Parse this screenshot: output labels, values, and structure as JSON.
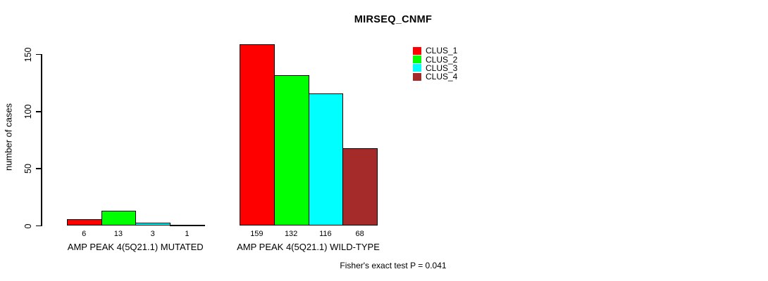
{
  "chart_data": {
    "type": "bar",
    "title": "MIRSEQ_CNMF",
    "ylabel": "number of cases",
    "ylim": [
      0,
      150
    ],
    "yticks": [
      0,
      50,
      100,
      150
    ],
    "series": [
      {
        "name": "CLUS_1",
        "color": "#ff0000"
      },
      {
        "name": "CLUS_2",
        "color": "#00ff00"
      },
      {
        "name": "CLUS_3",
        "color": "#00ffff"
      },
      {
        "name": "CLUS_4",
        "color": "#a52a2a"
      }
    ],
    "groups": [
      {
        "label": "AMP PEAK 4(5Q21.1) MUTATED",
        "values": [
          6,
          13,
          3,
          1
        ]
      },
      {
        "label": "AMP PEAK 4(5Q21.1) WILD-TYPE",
        "values": [
          159,
          132,
          116,
          68
        ]
      }
    ],
    "bar_value_labels": true,
    "legend_position": "top-right",
    "grid": false,
    "annotation": "Fisher's exact test P = 0.041"
  }
}
